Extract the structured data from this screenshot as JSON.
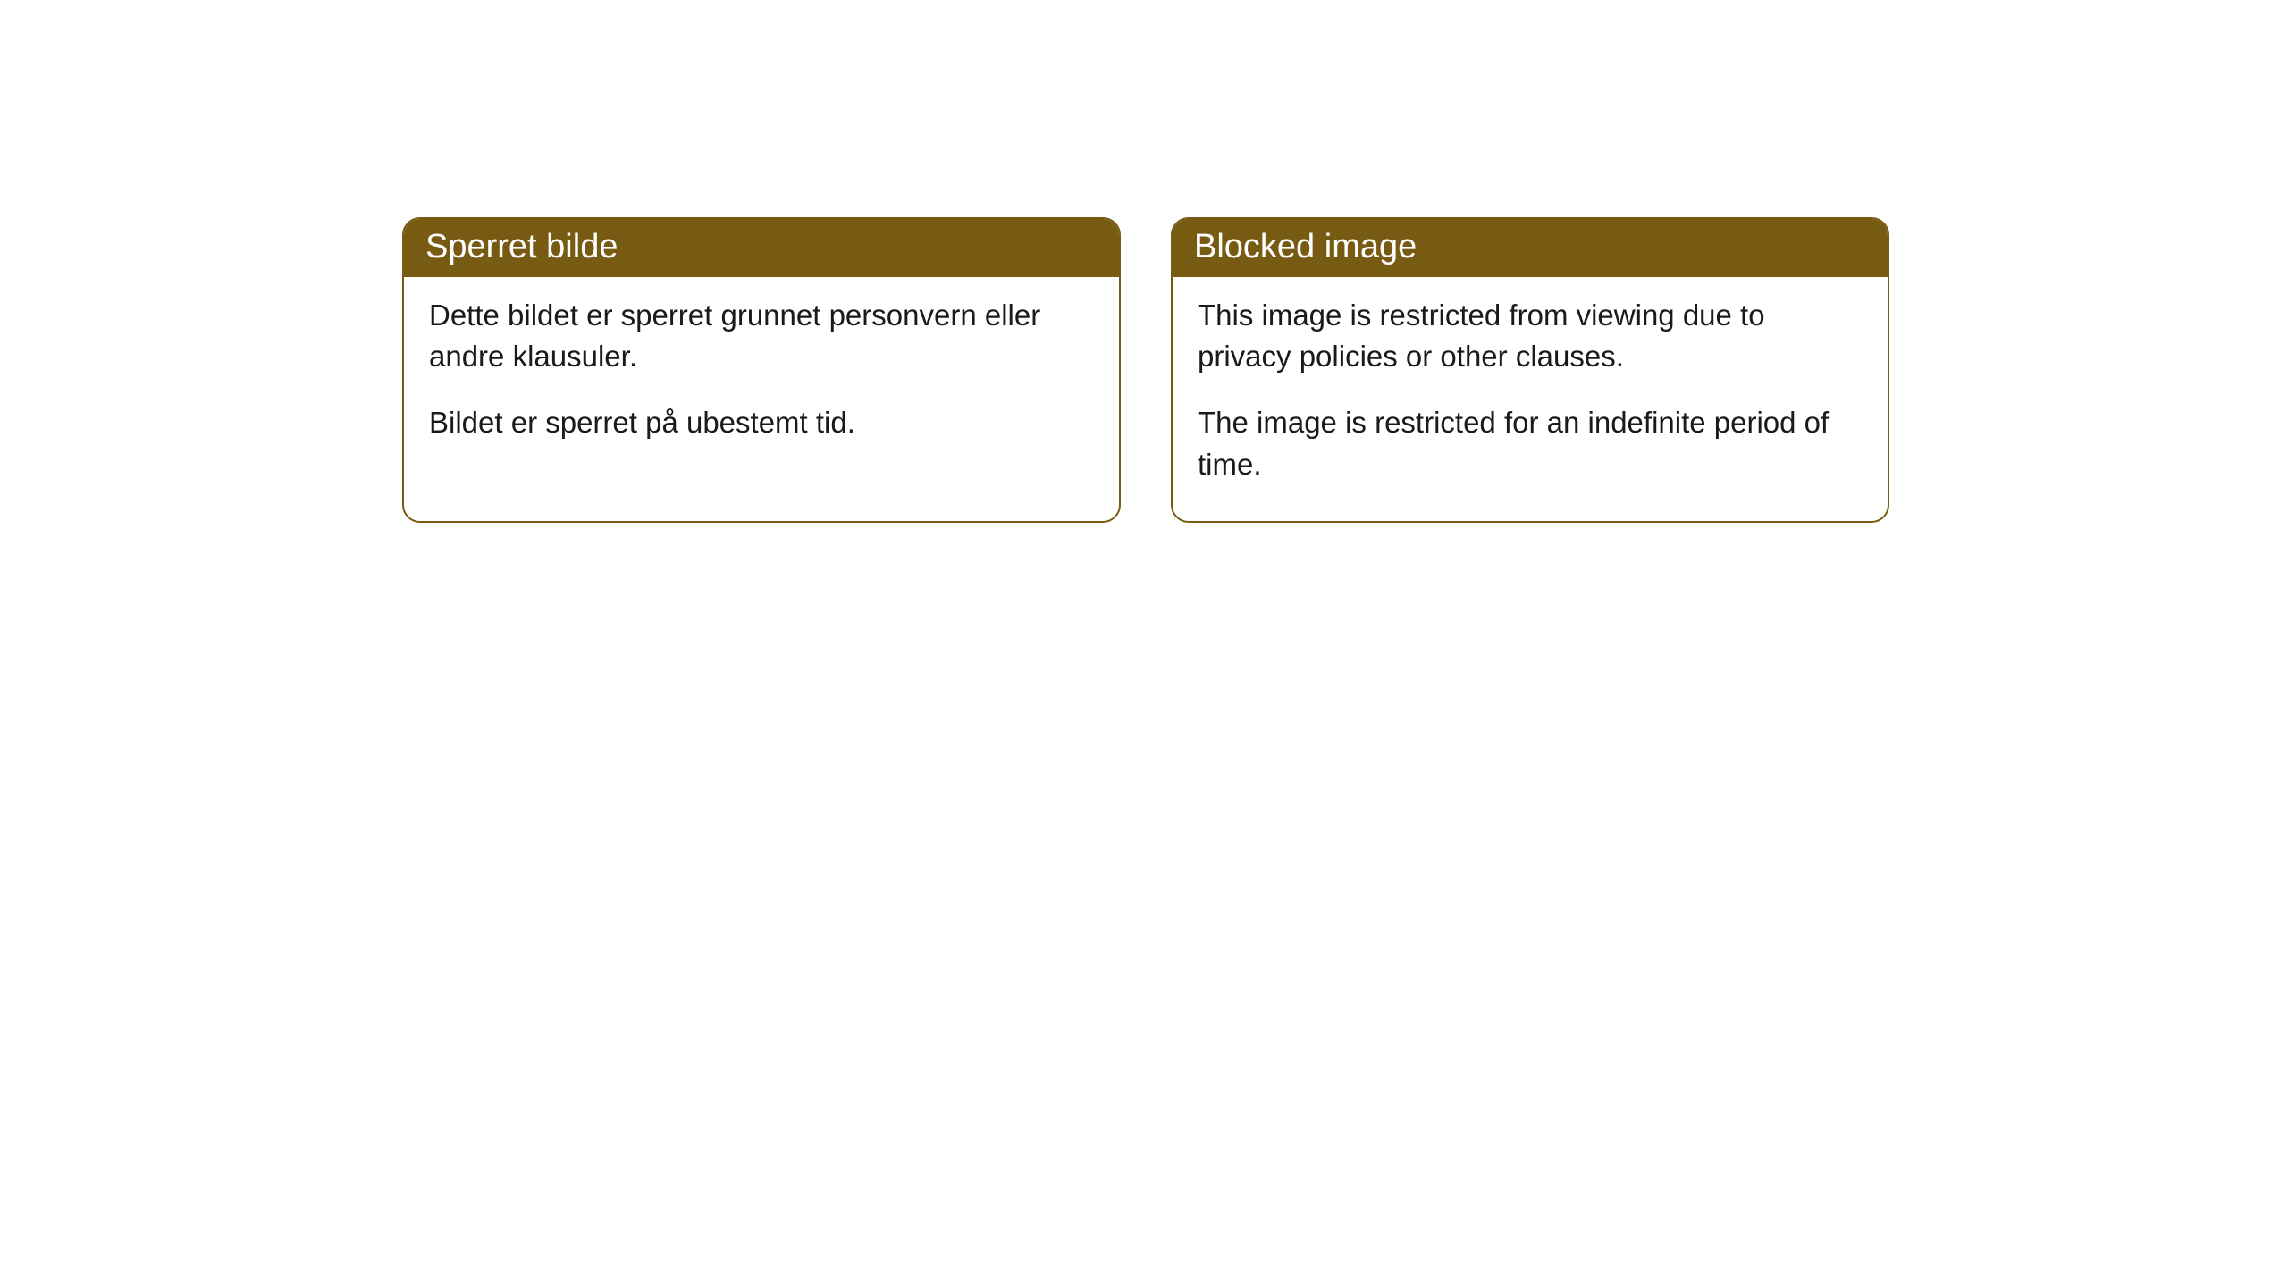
{
  "cards": [
    {
      "title": "Sperret bilde",
      "paragraph1": "Dette bildet er sperret grunnet personvern eller andre klausuler.",
      "paragraph2": "Bildet er sperret på ubestemt tid."
    },
    {
      "title": "Blocked image",
      "paragraph1": "This image is restricted from viewing due to privacy policies or other clauses.",
      "paragraph2": "The image is restricted for an indefinite period of time."
    }
  ],
  "colors": {
    "header_bg": "#785b12",
    "header_text": "#ffffff",
    "border": "#785b12",
    "body_bg": "#ffffff",
    "body_text": "#1a1a1a"
  }
}
